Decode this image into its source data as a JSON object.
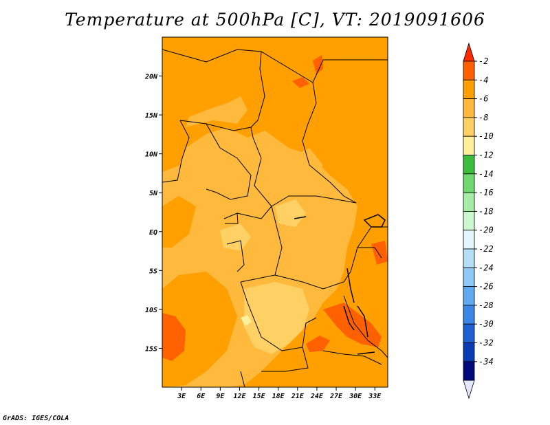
{
  "title": "Temperature at 500hPa [C], VT: 2019091606",
  "credit": "GrADS: IGES/COLA",
  "map": {
    "lon_range": [
      0,
      35
    ],
    "lat_range": [
      -20,
      25
    ],
    "lat_ticks": [
      {
        "value": 20,
        "label": "20N"
      },
      {
        "value": 15,
        "label": "15N"
      },
      {
        "value": 10,
        "label": "10N"
      },
      {
        "value": 5,
        "label": "5N"
      },
      {
        "value": 0,
        "label": "EQ"
      },
      {
        "value": -5,
        "label": "5S"
      },
      {
        "value": -10,
        "label": "10S"
      },
      {
        "value": -15,
        "label": "15S"
      }
    ],
    "lon_ticks": [
      {
        "value": 3,
        "label": "3E"
      },
      {
        "value": 6,
        "label": "6E"
      },
      {
        "value": 9,
        "label": "9E"
      },
      {
        "value": 12,
        "label": "12E"
      },
      {
        "value": 15,
        "label": "15E"
      },
      {
        "value": 18,
        "label": "18E"
      },
      {
        "value": 21,
        "label": "21E"
      },
      {
        "value": 24,
        "label": "24E"
      },
      {
        "value": 27,
        "label": "27E"
      },
      {
        "value": 30,
        "label": "30E"
      },
      {
        "value": 33,
        "label": "33E"
      }
    ]
  },
  "colorbar": {
    "levels": [
      {
        "label": "-2",
        "color": "#ff6000"
      },
      {
        "label": "-4",
        "color": "#ff9f00"
      },
      {
        "label": "-6",
        "color": "#ffb93d"
      },
      {
        "label": "-8",
        "color": "#ffd165"
      },
      {
        "label": "-10",
        "color": "#fff09b"
      },
      {
        "label": "-12",
        "color": "#3cbe3c"
      },
      {
        "label": "-14",
        "color": "#6fd96f"
      },
      {
        "label": "-16",
        "color": "#a6eca6"
      },
      {
        "label": "-18",
        "color": "#cdf7cd"
      },
      {
        "label": "-20",
        "color": "#e3f6fb"
      },
      {
        "label": "-22",
        "color": "#b4dff6"
      },
      {
        "label": "-24",
        "color": "#8fc8f2"
      },
      {
        "label": "-26",
        "color": "#5faaf0"
      },
      {
        "label": "-28",
        "color": "#3a85e6"
      },
      {
        "label": "-30",
        "color": "#1e60d2"
      },
      {
        "label": "-32",
        "color": "#0a3cb4"
      },
      {
        "label": "-34",
        "color": "#000a78"
      }
    ],
    "top_color": "#ff2a00",
    "bottom_color": "#e4e8ff"
  }
}
